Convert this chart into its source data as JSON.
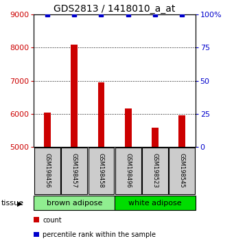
{
  "title": "GDS2813 / 1418010_a_at",
  "samples": [
    "GSM198456",
    "GSM198457",
    "GSM198458",
    "GSM198496",
    "GSM198523",
    "GSM198545"
  ],
  "counts": [
    6050,
    8100,
    6950,
    6170,
    5580,
    5950
  ],
  "percentile_ranks": [
    100,
    100,
    100,
    100,
    100,
    100
  ],
  "ylim_left": [
    5000,
    9000
  ],
  "ylim_right": [
    0,
    100
  ],
  "yticks_left": [
    5000,
    6000,
    7000,
    8000,
    9000
  ],
  "yticks_right": [
    0,
    25,
    50,
    75,
    100
  ],
  "bar_color": "#cc0000",
  "percentile_color": "#0000cc",
  "tissue_groups": [
    {
      "label": "brown adipose",
      "n": 3,
      "color": "#90ee90"
    },
    {
      "label": "white adipose",
      "n": 3,
      "color": "#00dd00"
    }
  ],
  "tissue_label": "tissue",
  "legend_count_label": "count",
  "legend_percentile_label": "percentile rank within the sample",
  "background_color": "#ffffff",
  "label_box_color": "#cccccc",
  "right_axis_color": "#0000cc",
  "left_axis_color": "#cc0000",
  "title_fontsize": 10,
  "tick_fontsize": 8,
  "sample_fontsize": 6,
  "tissue_fontsize": 8,
  "legend_fontsize": 7,
  "bar_width": 0.25,
  "percentile_marker_size": 4
}
